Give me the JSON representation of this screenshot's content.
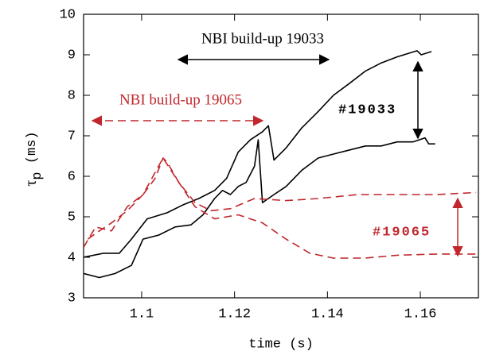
{
  "chart_data": {
    "type": "line",
    "xlabel": "time (s)",
    "ylabel": "τp (ms)",
    "xlim": [
      1.0875,
      1.1725
    ],
    "ylim": [
      3,
      10
    ],
    "xticks": [
      1.1,
      1.12,
      1.14,
      1.16
    ],
    "yticks": [
      3,
      4,
      5,
      6,
      7,
      8,
      9,
      10
    ],
    "annotations": [
      "NBI build-up 19033",
      "NBI build-up 19065",
      "#19033",
      "#19065"
    ],
    "series": [
      {
        "color": "#000000",
        "dash": false,
        "x": [
          1.0875,
          1.0918,
          1.0952,
          1.0978,
          1.1012,
          1.1055,
          1.109,
          1.1123,
          1.1157,
          1.1183,
          1.1208,
          1.1234,
          1.126,
          1.1273,
          1.1285,
          1.1311,
          1.1345,
          1.138,
          1.1413,
          1.1448,
          1.1482,
          1.1516,
          1.155,
          1.1593,
          1.1602,
          1.1624
        ],
        "values": [
          4.0,
          4.1,
          4.1,
          4.45,
          4.95,
          5.1,
          5.3,
          5.45,
          5.65,
          5.95,
          6.6,
          6.9,
          7.1,
          7.25,
          6.4,
          6.7,
          7.2,
          7.6,
          8.0,
          8.3,
          8.6,
          8.8,
          8.95,
          9.1,
          9.0,
          9.08
        ]
      },
      {
        "color": "#000000",
        "dash": false,
        "x": [
          1.0875,
          1.0909,
          1.0943,
          1.0978,
          1.1003,
          1.1037,
          1.1072,
          1.1106,
          1.1132,
          1.1157,
          1.1174,
          1.1191,
          1.1208,
          1.1225,
          1.1243,
          1.1251,
          1.126,
          1.1285,
          1.1311,
          1.1345,
          1.138,
          1.1413,
          1.1448,
          1.1482,
          1.1516,
          1.155,
          1.1584,
          1.161,
          1.1618,
          1.1632
        ],
        "values": [
          3.6,
          3.5,
          3.6,
          3.8,
          4.45,
          4.55,
          4.75,
          4.8,
          5.05,
          5.45,
          5.65,
          5.55,
          5.75,
          5.85,
          6.25,
          6.9,
          5.35,
          5.55,
          5.75,
          6.15,
          6.45,
          6.55,
          6.65,
          6.75,
          6.75,
          6.85,
          6.85,
          6.95,
          6.8,
          6.8
        ]
      },
      {
        "color": "#c0272d",
        "dash": true,
        "x": [
          1.0875,
          1.0901,
          1.0935,
          1.0969,
          1.1003,
          1.1029,
          1.1046,
          1.1055,
          1.108,
          1.1115,
          1.1149,
          1.1191,
          1.1243,
          1.1311,
          1.138,
          1.1465,
          1.155,
          1.1636,
          1.172
        ],
        "values": [
          4.25,
          4.75,
          4.65,
          5.25,
          5.55,
          5.95,
          6.45,
          6.35,
          5.85,
          5.35,
          5.15,
          5.2,
          5.45,
          5.4,
          5.45,
          5.55,
          5.55,
          5.55,
          5.6
        ]
      },
      {
        "color": "#c0272d",
        "dash": true,
        "x": [
          1.0884,
          1.0909,
          1.0935,
          1.0969,
          1.1003,
          1.1046,
          1.108,
          1.1115,
          1.1157,
          1.1208,
          1.126,
          1.1311,
          1.1362,
          1.1413,
          1.1482,
          1.155,
          1.1636,
          1.172
        ],
        "values": [
          4.45,
          4.65,
          4.85,
          5.15,
          5.55,
          6.45,
          5.85,
          5.25,
          4.95,
          5.05,
          4.85,
          4.45,
          4.1,
          3.98,
          3.98,
          4.05,
          4.08,
          4.08
        ]
      }
    ]
  }
}
